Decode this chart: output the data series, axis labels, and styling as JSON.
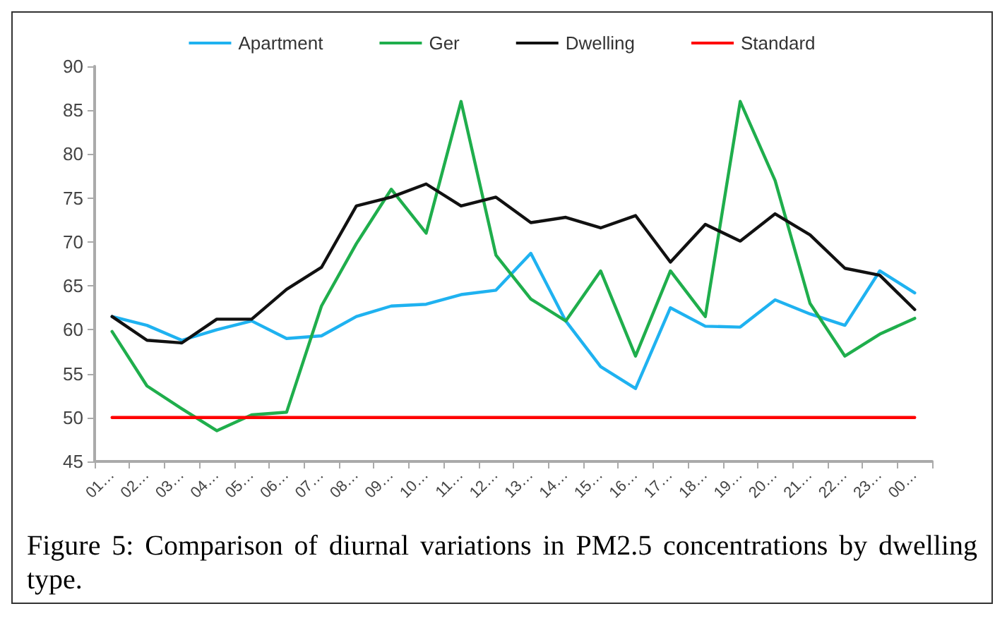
{
  "chart_data": {
    "type": "line",
    "categories": [
      "01…",
      "02…",
      "03…",
      "04…",
      "05…",
      "06…",
      "07…",
      "08…",
      "09…",
      "10…",
      "11…",
      "12…",
      "13…",
      "14…",
      "15…",
      "16…",
      "17…",
      "18…",
      "19…",
      "20…",
      "21…",
      "22…",
      "23…",
      "00…"
    ],
    "series": [
      {
        "name": "Apartment",
        "color": "#1fb2f0",
        "values": [
          61.5,
          60.5,
          58.8,
          60,
          61,
          59,
          59.3,
          61.5,
          62.7,
          62.9,
          64,
          64.5,
          68.7,
          61,
          55.8,
          53.3,
          62.5,
          60.4,
          60.3,
          63.4,
          61.8,
          60.5,
          66.7,
          64.2
        ]
      },
      {
        "name": "Ger",
        "color": "#1fae4c",
        "values": [
          59.8,
          53.6,
          51,
          48.5,
          50.3,
          50.6,
          62.7,
          69.8,
          76,
          71,
          86,
          68.5,
          63.5,
          61,
          66.7,
          57,
          66.7,
          61.5,
          86,
          77,
          63,
          57,
          59.5,
          61.3
        ]
      },
      {
        "name": "Dwelling",
        "color": "#111111",
        "values": [
          61.5,
          58.8,
          58.5,
          61.2,
          61.2,
          64.6,
          67.1,
          74.1,
          75.1,
          76.6,
          74.1,
          75.1,
          72.2,
          72.8,
          71.6,
          73,
          67.7,
          72,
          70.1,
          73.2,
          70.8,
          67,
          66.2,
          62.3
        ]
      },
      {
        "name": "Standard",
        "color": "#ff0000",
        "values": [
          50,
          50,
          50,
          50,
          50,
          50,
          50,
          50,
          50,
          50,
          50,
          50,
          50,
          50,
          50,
          50,
          50,
          50,
          50,
          50,
          50,
          50,
          50,
          50
        ]
      }
    ],
    "ylim": [
      45,
      90
    ],
    "yticks": [
      45,
      50,
      55,
      60,
      65,
      70,
      75,
      80,
      85,
      90
    ],
    "grid": false,
    "legend": "top",
    "marker": "none",
    "annotations": [
      "Figure 5: Comparison of diurnal variations in PM2.5 concentrations by dwelling type."
    ]
  }
}
